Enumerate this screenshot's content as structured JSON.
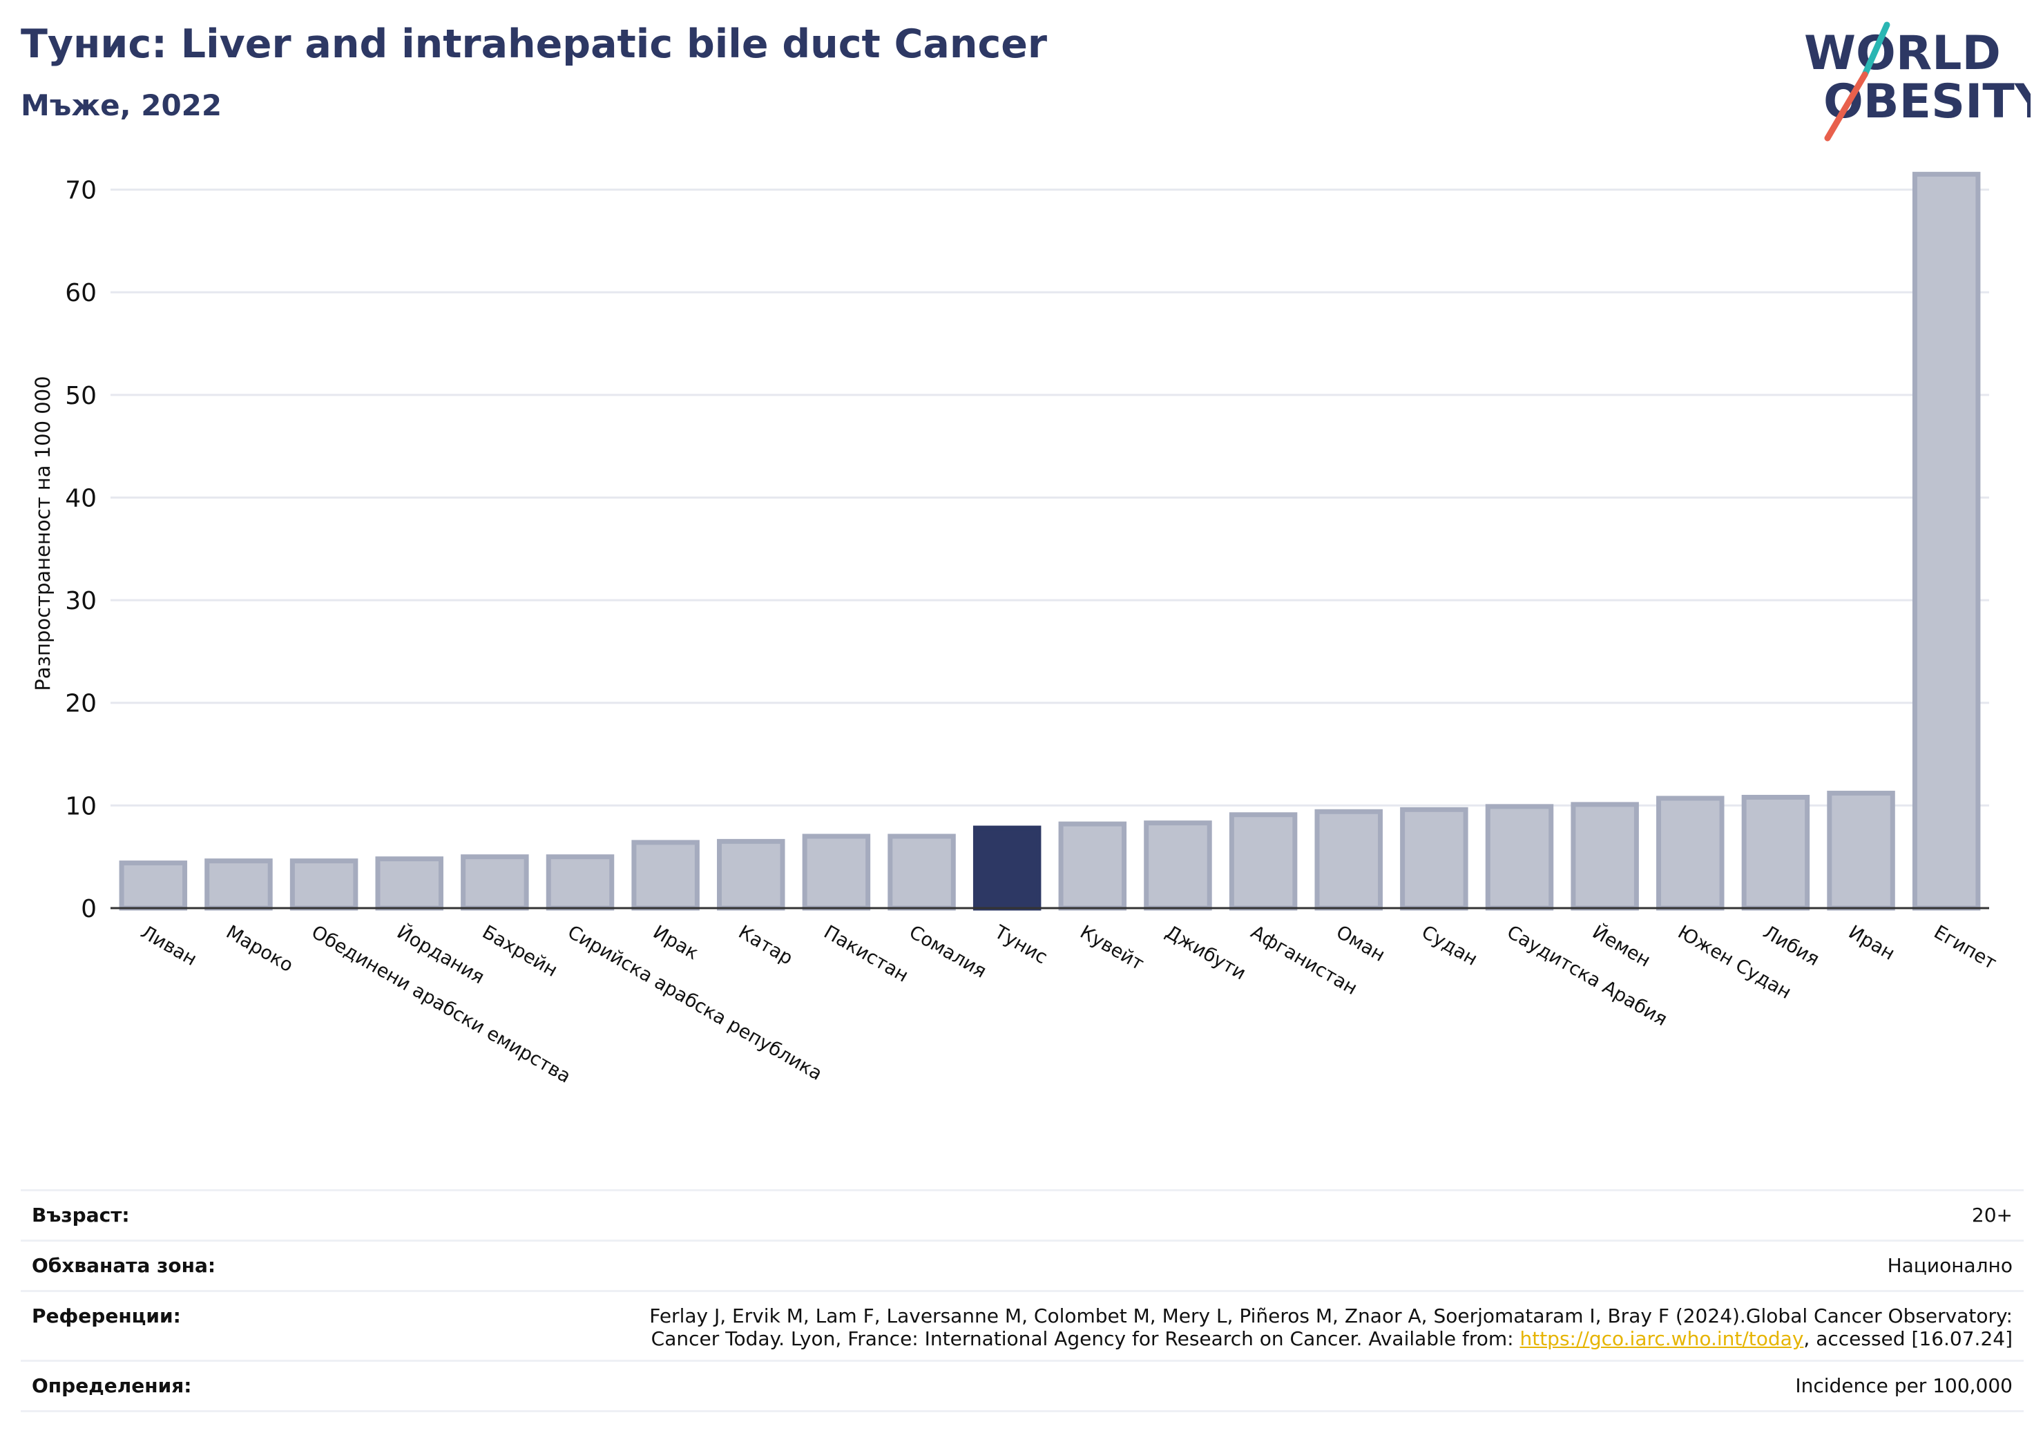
{
  "header": {
    "title": "Тунис: Liver and intrahepatic bile duct Cancer",
    "subtitle": "Мъже, 2022"
  },
  "logo": {
    "line1": "WORLD",
    "line2": "OBESITY",
    "colors": {
      "text": "#2d3864",
      "slash_top": "#2ab6b3",
      "slash_bottom": "#e8604c"
    }
  },
  "chart_data": {
    "type": "bar",
    "title": "",
    "xlabel": "",
    "ylabel": "Разпространеност  на 100 000",
    "ylim": [
      0,
      73
    ],
    "yticks": [
      0,
      10,
      20,
      30,
      40,
      50,
      60,
      70
    ],
    "grid": true,
    "categories": [
      "Ливан",
      "Мароко",
      "Обединени арабски емирства",
      "Йордания",
      "Бахрейн",
      "Сирийска арабска република",
      "Ирак",
      "Катар",
      "Пакистан",
      "Сомалия",
      "Тунис",
      "Кувейт",
      "Джибути",
      "Афганистан",
      "Оман",
      "Судан",
      "Саудитска Арабия",
      "Йемен",
      "Южен Судан",
      "Либия",
      "Иран",
      "Египет"
    ],
    "values": [
      4.4,
      4.6,
      4.6,
      4.8,
      5.0,
      5.0,
      6.4,
      6.5,
      7.0,
      7.0,
      7.8,
      8.2,
      8.3,
      9.1,
      9.4,
      9.6,
      9.9,
      10.1,
      10.7,
      10.8,
      11.2,
      71.5
    ],
    "highlight": "Тунис",
    "colors": {
      "bar": "#bec2cf",
      "bar_edge": "#a5abbe",
      "highlight": "#2d3864",
      "grid": "#e6e8ef",
      "axis": "#333333"
    }
  },
  "meta": {
    "age_label": "Възраст:",
    "age_value": "20+",
    "coverage_label": "Обхваната зона:",
    "coverage_value": "Национално",
    "references_label": "Референции:",
    "references_line1": "Ferlay J, Ervik M, Lam F, Laversanne M, Colombet M, Mery L, Piñeros M, Znaor A, Soerjomataram I, Bray F (2024).Global Cancer Observatory:",
    "references_line2_pre": "Cancer Today. Lyon, France: International Agency for Research on Cancer. Available from: ",
    "references_link": "https://gco.iarc.who.int/today",
    "references_line2_post": ", accessed [16.07.24]",
    "definitions_label": "Определения:",
    "definitions_value": "Incidence per 100,000"
  }
}
